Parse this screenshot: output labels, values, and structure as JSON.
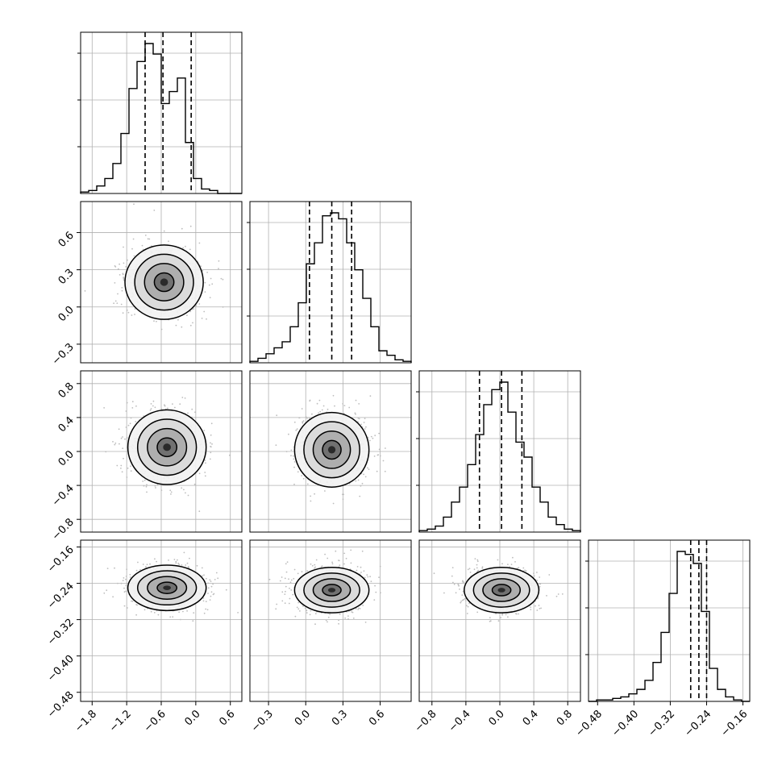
{
  "chart_data": {
    "type": "corner",
    "parameters": 4,
    "grid": true,
    "quantile_lines": "dashed",
    "axes": {
      "p1": {
        "range": [
          -2.0,
          0.8
        ],
        "ticks": [
          "-1.8",
          "-1.2",
          "-0.6",
          "0.0",
          "0.6"
        ],
        "tick_values": [
          -1.8,
          -1.2,
          -0.6,
          0.0,
          0.6
        ]
      },
      "p2": {
        "range": [
          -0.45,
          0.85
        ],
        "ticks": [
          "-0.3",
          "0.0",
          "0.3",
          "0.6"
        ],
        "tick_values": [
          -0.3,
          0.0,
          0.3,
          0.6
        ]
      },
      "p3": {
        "range": [
          -0.95,
          0.95
        ],
        "ticks": [
          "-0.8",
          "-0.4",
          "0.0",
          "0.4",
          "0.8"
        ],
        "tick_values": [
          -0.8,
          -0.4,
          0.0,
          0.4,
          0.8
        ]
      },
      "p4": {
        "range": [
          -0.5,
          -0.145
        ],
        "ticks": [
          "-0.48",
          "-0.40",
          "-0.32",
          "-0.24",
          "-0.16"
        ],
        "tick_values": [
          -0.48,
          -0.4,
          -0.32,
          -0.24,
          -0.16
        ]
      }
    },
    "quantiles": {
      "p1": [
        -0.88,
        -0.57,
        -0.08
      ],
      "p2": [
        0.03,
        0.21,
        0.37
      ],
      "p3": [
        -0.24,
        0.02,
        0.26
      ],
      "p4": [
        -0.275,
        -0.257,
        -0.24
      ]
    },
    "histograms": {
      "p1": [
        0.01,
        0.02,
        0.05,
        0.1,
        0.2,
        0.4,
        0.7,
        0.88,
        1.0,
        0.93,
        0.6,
        0.68,
        0.77,
        0.34,
        0.1,
        0.03,
        0.02,
        0.0,
        0.0,
        0.0
      ],
      "p2": [
        0.01,
        0.03,
        0.06,
        0.1,
        0.14,
        0.24,
        0.4,
        0.66,
        0.8,
        0.98,
        1.0,
        0.96,
        0.8,
        0.62,
        0.43,
        0.24,
        0.08,
        0.05,
        0.02,
        0.01
      ],
      "p3": [
        0.01,
        0.02,
        0.04,
        0.1,
        0.2,
        0.3,
        0.45,
        0.65,
        0.85,
        0.95,
        1.0,
        0.8,
        0.6,
        0.5,
        0.3,
        0.2,
        0.1,
        0.05,
        0.02,
        0.01
      ],
      "p4": [
        0.0,
        0.01,
        0.01,
        0.02,
        0.03,
        0.05,
        0.08,
        0.14,
        0.26,
        0.46,
        0.72,
        1.0,
        0.98,
        0.92,
        0.6,
        0.22,
        0.08,
        0.03,
        0.01,
        0.0
      ]
    },
    "scatter_centers": {
      "p2_vs_p1": [
        -0.55,
        0.2
      ],
      "p3_vs_p1": [
        -0.5,
        0.05
      ],
      "p4_vs_p1": [
        -0.5,
        -0.25
      ],
      "p3_vs_p2": [
        0.21,
        0.02
      ],
      "p4_vs_p2": [
        0.21,
        -0.255
      ],
      "p4_vs_p3": [
        0.02,
        -0.255
      ]
    }
  }
}
